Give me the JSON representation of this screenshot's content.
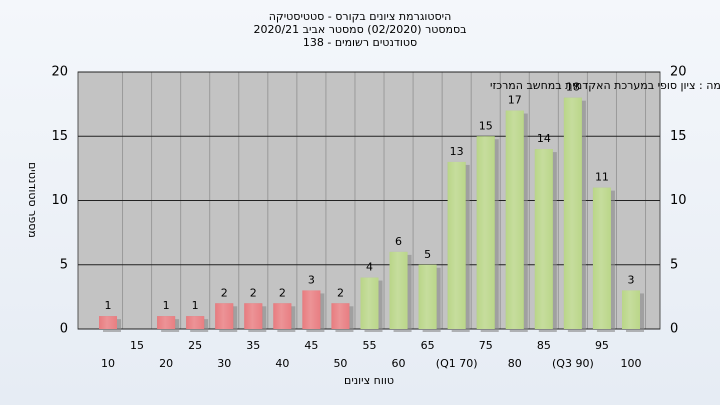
{
  "chart_data": {
    "type": "bar",
    "title": [
      "היסטוגרמת ציונים בקורס - סטטיסטיקה",
      "בסמסטר  (02/2020)  סמסטר אביב 2020/21",
      "סטודנטים רשומים - 138"
    ],
    "annotation": "במשימה : ציון סופי במערכת האקדמית במחשב המרכזי",
    "x_label": "טווח ציונים",
    "y_label": "מספר סטודנטים",
    "categories": [
      "10",
      "15",
      "20",
      "25",
      "30",
      "35",
      "40",
      "45",
      "50",
      "55",
      "60",
      "65",
      "(Q1 70)",
      "75",
      "80",
      "85",
      "(Q3 90)",
      "95",
      "100"
    ],
    "values": [
      1,
      0,
      1,
      1,
      2,
      2,
      2,
      3,
      2,
      4,
      6,
      5,
      13,
      15,
      17,
      14,
      18,
      11,
      3
    ],
    "colors": [
      "#d9282e",
      "#d9282e",
      "#d9282e",
      "#d9282e",
      "#d9282e",
      "#d9282e",
      "#d9282e",
      "#d9282e",
      "#d9282e",
      "#8dbb3c",
      "#8dbb3c",
      "#8dbb3c",
      "#8dbb3c",
      "#8dbb3c",
      "#8dbb3c",
      "#8dbb3c",
      "#8dbb3c",
      "#8dbb3c",
      "#8dbb3c"
    ],
    "ylim": [
      0,
      20
    ],
    "yticks": [
      0,
      5,
      10,
      15,
      20
    ],
    "grid": true
  }
}
